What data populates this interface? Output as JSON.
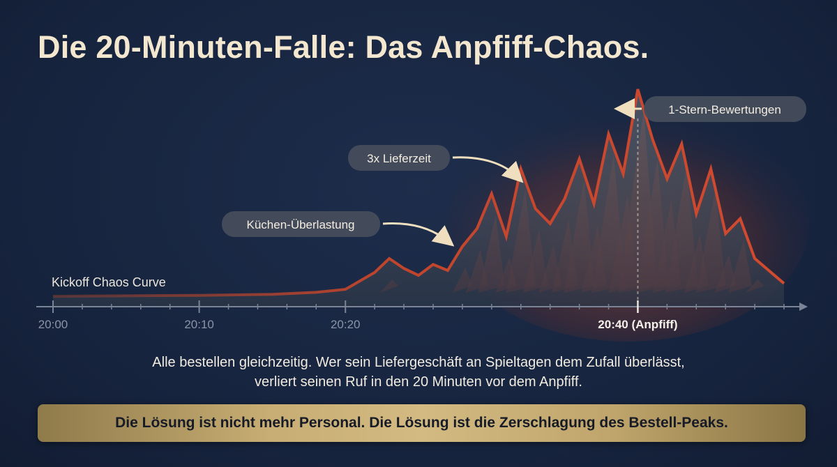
{
  "title": "Die 20-Minuten-Falle: Das Anpfiff-Chaos.",
  "chart_data": {
    "type": "line",
    "series": [
      {
        "name": "Kickoff Chaos Curve",
        "x": [
          "20:00",
          "20:05",
          "20:10",
          "20:15",
          "20:18",
          "20:20",
          "20:22",
          "20:23",
          "20:24",
          "20:25",
          "20:26",
          "20:27",
          "20:28",
          "20:29",
          "20:30",
          "20:31",
          "20:32",
          "20:33",
          "20:34",
          "20:35",
          "20:36",
          "20:37",
          "20:38",
          "20:39",
          "20:40",
          "20:41",
          "20:42",
          "20:43",
          "20:44",
          "20:45",
          "20:46",
          "20:47",
          "20:48",
          "20:50"
        ],
        "values": [
          2,
          2.5,
          3,
          4,
          6,
          9,
          26,
          40,
          30,
          23,
          34,
          28,
          52,
          70,
          105,
          62,
          130,
          90,
          75,
          100,
          140,
          95,
          165,
          125,
          210,
          160,
          120,
          155,
          85,
          130,
          65,
          80,
          40,
          15
        ]
      }
    ],
    "xticks": [
      "20:00",
      "20:10",
      "20:20",
      "20:40 (Anpfiff)"
    ],
    "xtick_values": [
      "20:00",
      "20:10",
      "20:20",
      "20:40"
    ],
    "x_range": [
      "20:00",
      "20:51"
    ],
    "highlight_x": "20:40",
    "annotations": [
      {
        "text": "Küchen-Überlastung",
        "x": "20:22"
      },
      {
        "text": "3x Lieferzeit",
        "x": "20:30"
      },
      {
        "text": "1-Stern-Bewertungen",
        "x": "20:40"
      }
    ],
    "grid": false,
    "colors": {
      "line": "#c0452d",
      "burst": "#b0402a",
      "accent": "#f0dfbf",
      "axis": "#7a8496"
    }
  },
  "caption": {
    "line1": "Alle bestellen gleichzeitig. Wer sein Liefergeschäft an Spieltagen dem Zufall überlässt,",
    "line2": "verliert seinen Ruf in den 20 Minuten vor dem Anpfiff."
  },
  "banner": "Die Lösung ist nicht mehr Personal. Die Lösung ist die Zerschlagung des Bestell-Peaks."
}
